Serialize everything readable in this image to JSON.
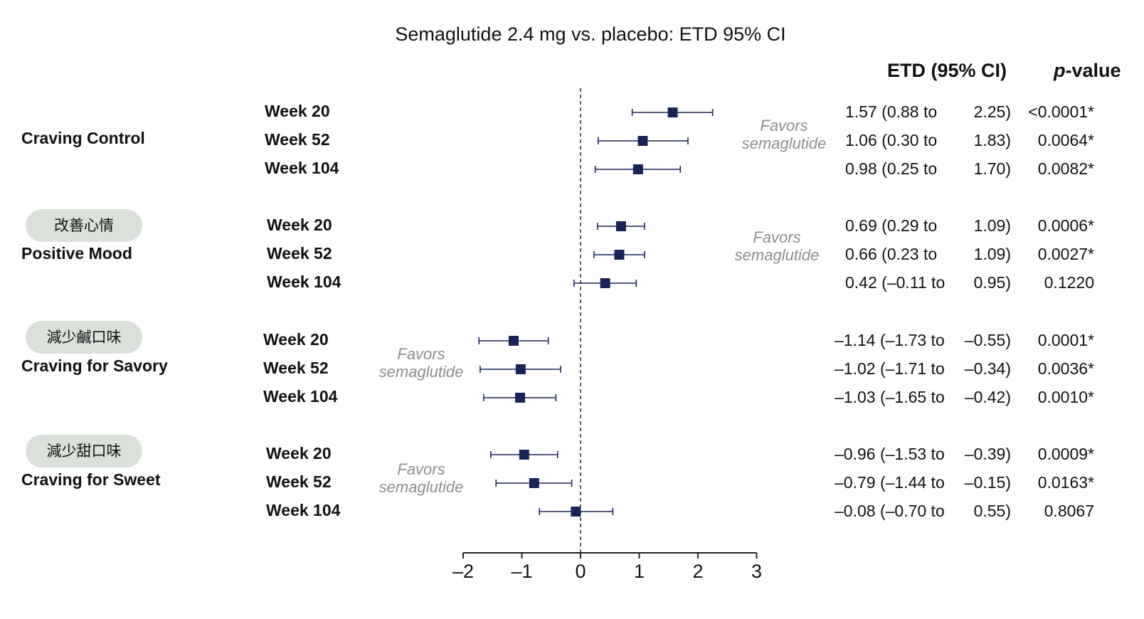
{
  "chart_data": {
    "type": "forest",
    "title": "Semaglutide 2.4 mg vs. placebo: ETD 95% CI",
    "xlim": [
      -2,
      3
    ],
    "xticks": [
      "–2",
      "–1",
      "0",
      "1",
      "2",
      "3"
    ],
    "reference_line": 0,
    "columns": {
      "etd": "ETD (95% CI)",
      "p_prefix": "p",
      "p_suffix": "-value"
    },
    "favors_label": {
      "line1": "Favors",
      "line2": "semaglutide"
    },
    "colors": {
      "marker": "#1a2357",
      "line": "#1a2357",
      "badge": "#d9e1da",
      "favors": "#8d8d8d"
    },
    "groups": [
      {
        "outcome": "Craving Control",
        "badge": "",
        "favors_side": "right",
        "rows": [
          {
            "week": "Week 20",
            "etd": 1.57,
            "lo": 0.88,
            "hi": 2.25,
            "ci_lower_text": "1.57 (0.88 to",
            "ci_upper_text": "2.25)",
            "p": "<0.0001*"
          },
          {
            "week": "Week 52",
            "etd": 1.06,
            "lo": 0.3,
            "hi": 1.83,
            "ci_lower_text": "1.06 (0.30 to",
            "ci_upper_text": "1.83)",
            "p": "0.0064*"
          },
          {
            "week": "Week 104",
            "etd": 0.98,
            "lo": 0.25,
            "hi": 1.7,
            "ci_lower_text": "0.98 (0.25 to",
            "ci_upper_text": "1.70)",
            "p": "0.0082*"
          }
        ]
      },
      {
        "outcome": "Positive Mood",
        "badge": "改善心情",
        "favors_side": "right",
        "rows": [
          {
            "week": "Week 20",
            "etd": 0.69,
            "lo": 0.29,
            "hi": 1.09,
            "ci_lower_text": "0.69 (0.29 to",
            "ci_upper_text": "1.09)",
            "p": "0.0006*"
          },
          {
            "week": "Week 52",
            "etd": 0.66,
            "lo": 0.23,
            "hi": 1.09,
            "ci_lower_text": "0.66 (0.23 to",
            "ci_upper_text": "1.09)",
            "p": "0.0027*"
          },
          {
            "week": "Week 104",
            "etd": 0.42,
            "lo": -0.11,
            "hi": 0.95,
            "ci_lower_text": "0.42 (–0.11 to",
            "ci_upper_text": "0.95)",
            "p": "0.1220"
          }
        ]
      },
      {
        "outcome": "Craving for Savory",
        "badge": "減少鹹口味",
        "favors_side": "left",
        "rows": [
          {
            "week": "Week 20",
            "etd": -1.14,
            "lo": -1.73,
            "hi": -0.55,
            "ci_lower_text": "–1.14 (–1.73 to",
            "ci_upper_text": "–0.55)",
            "p": "0.0001*"
          },
          {
            "week": "Week 52",
            "etd": -1.02,
            "lo": -1.71,
            "hi": -0.34,
            "ci_lower_text": "–1.02 (–1.71 to",
            "ci_upper_text": "–0.34)",
            "p": "0.0036*"
          },
          {
            "week": "Week 104",
            "etd": -1.03,
            "lo": -1.65,
            "hi": -0.42,
            "ci_lower_text": "–1.03 (–1.65 to",
            "ci_upper_text": "–0.42)",
            "p": "0.0010*"
          }
        ]
      },
      {
        "outcome": "Craving for Sweet",
        "badge": "減少甜口味",
        "favors_side": "left",
        "rows": [
          {
            "week": "Week 20",
            "etd": -0.96,
            "lo": -1.53,
            "hi": -0.39,
            "ci_lower_text": "–0.96 (–1.53 to",
            "ci_upper_text": "–0.39)",
            "p": "0.0009*"
          },
          {
            "week": "Week 52",
            "etd": -0.79,
            "lo": -1.44,
            "hi": -0.15,
            "ci_lower_text": "–0.79 (–1.44 to",
            "ci_upper_text": "–0.15)",
            "p": "0.0163*"
          },
          {
            "week": "Week 104",
            "etd": -0.08,
            "lo": -0.7,
            "hi": 0.55,
            "ci_lower_text": "–0.08 (–0.70 to",
            "ci_upper_text": "0.55)",
            "p": "0.8067"
          }
        ]
      }
    ]
  }
}
